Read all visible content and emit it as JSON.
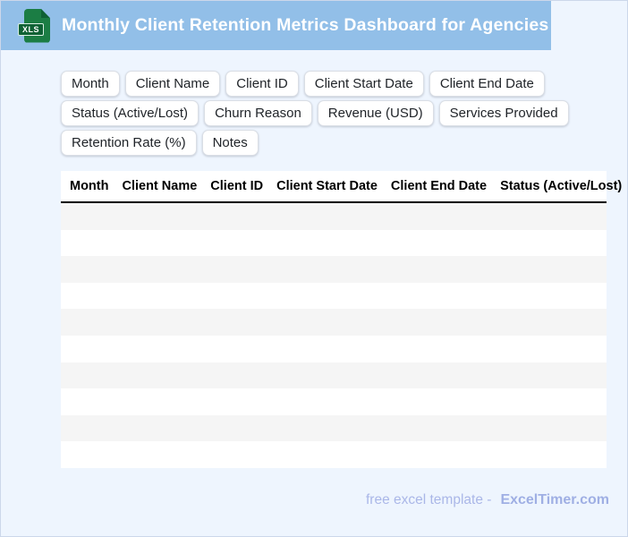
{
  "header": {
    "title": "Monthly Client Retention Metrics Dashboard for Agencies",
    "file_badge": "XLS"
  },
  "column_chips": [
    "Month",
    "Client Name",
    "Client ID",
    "Client Start Date",
    "Client End Date",
    "Status (Active/Lost)",
    "Churn Reason",
    "Revenue (USD)",
    "Services Provided",
    "Retention Rate (%)",
    "Notes"
  ],
  "table": {
    "columns": [
      "Month",
      "Client Name",
      "Client ID",
      "Client Start Date",
      "Client End Date",
      "Status (Active/Lost)"
    ],
    "empty_row_count": 10
  },
  "footer": {
    "label": "free excel template -",
    "brand": "ExcelTimer.com"
  },
  "colors": {
    "header_bg": "#92bfe8",
    "page_bg": "#eef5fe",
    "page_border": "#ccd7ea",
    "icon_green": "#1b7d44",
    "icon_green_dark": "#0e6134",
    "row_stripe": "#f5f5f5",
    "row_white": "#ffffff",
    "header_rule": "#000000",
    "chip_text": "#1f2328",
    "footer_label": "#aab7e8",
    "footer_brand": "#9fafe4"
  }
}
